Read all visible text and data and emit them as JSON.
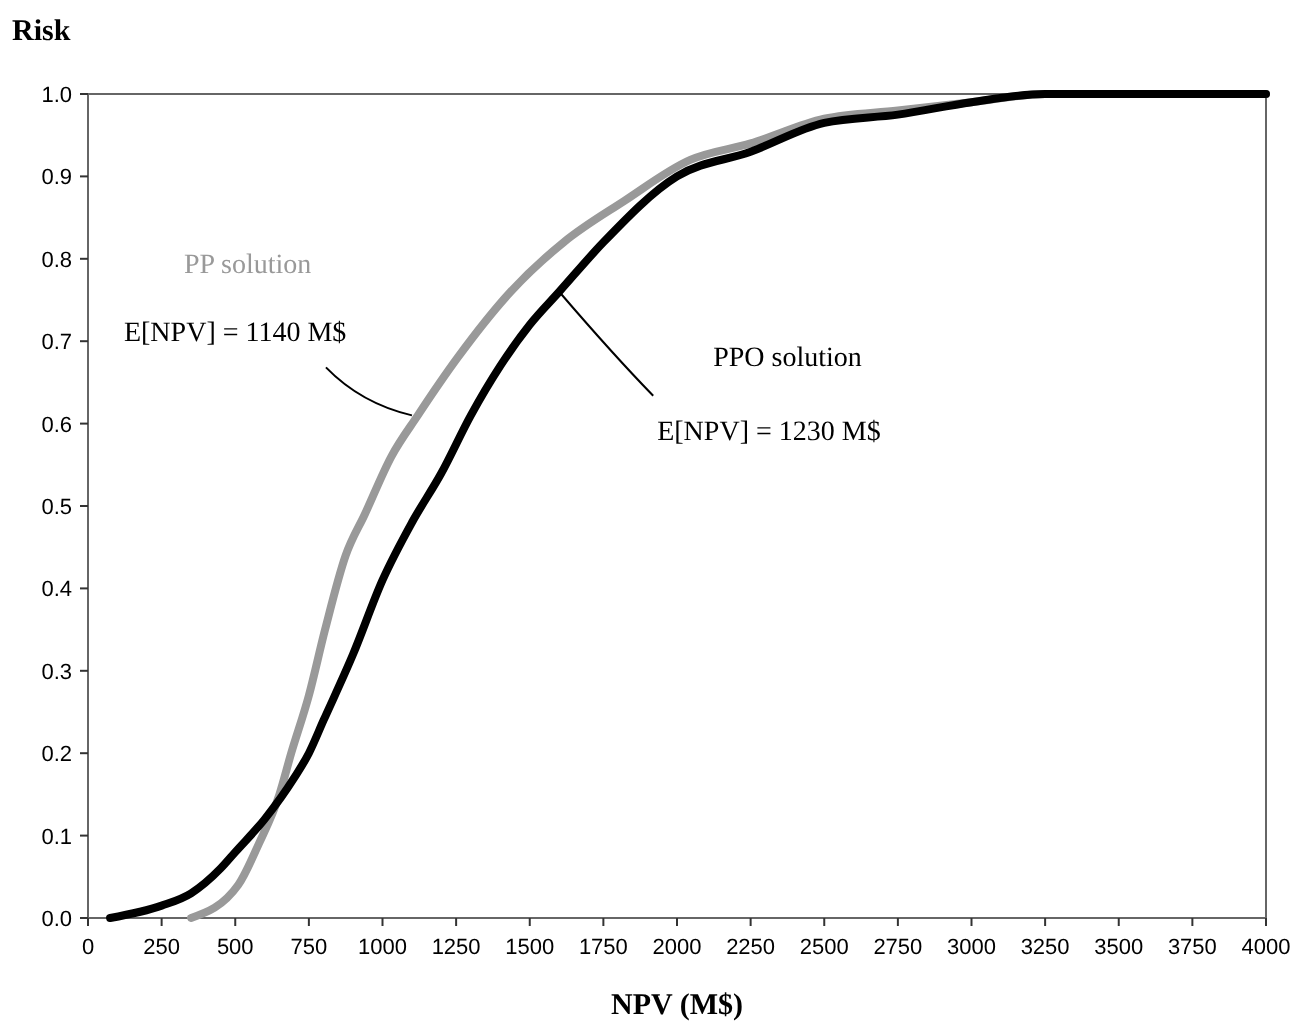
{
  "chart_data": {
    "type": "line",
    "xlabel": "NPV (M$)",
    "ylabel": "Risk",
    "xlim": [
      0,
      4000
    ],
    "xticks": [
      0,
      250,
      500,
      750,
      1000,
      1250,
      1500,
      1750,
      2000,
      2250,
      2500,
      2750,
      3000,
      3250,
      3500,
      3750,
      4000
    ],
    "ylim": [
      0,
      1
    ],
    "yticks": [
      {
        "value": 0,
        "label": "0.0"
      },
      {
        "value": 0.1,
        "label": "0.1"
      },
      {
        "value": 0.2,
        "label": "0.2"
      },
      {
        "value": 0.3,
        "label": "0.3"
      },
      {
        "value": 0.4,
        "label": "0.4"
      },
      {
        "value": 0.5,
        "label": "0.5"
      },
      {
        "value": 0.6,
        "label": "0.6"
      },
      {
        "value": 0.7,
        "label": "0.7"
      },
      {
        "value": 0.8,
        "label": "0.8"
      },
      {
        "value": 0.9,
        "label": "0.9"
      },
      {
        "value": 1,
        "label": "1.0"
      }
    ],
    "grid": false,
    "marker": "none",
    "line_style": "solid",
    "series": [
      {
        "name": "PP solution",
        "color": "#999999",
        "x": [
          350,
          510,
          580,
          650,
          690,
          750,
          805,
          875,
          940,
          1030,
          1120,
          1255,
          1435,
          1615,
          1820,
          2045,
          2250,
          2500,
          2750,
          3000,
          3250,
          4000
        ],
        "values": [
          0,
          0.04,
          0.09,
          0.15,
          0.2,
          0.27,
          0.35,
          0.44,
          0.49,
          0.56,
          0.61,
          0.68,
          0.76,
          0.82,
          0.87,
          0.92,
          0.94,
          0.97,
          0.98,
          0.99,
          1,
          1
        ]
      },
      {
        "name": "PPO solution",
        "color": "#000000",
        "x": [
          75,
          250,
          350,
          450,
          500,
          600,
          700,
          750,
          800,
          900,
          1000,
          1100,
          1200,
          1300,
          1400,
          1500,
          1600,
          1750,
          2000,
          2250,
          2500,
          2750,
          3000,
          3250,
          4000
        ],
        "values": [
          0,
          0.015,
          0.03,
          0.06,
          0.08,
          0.12,
          0.17,
          0.2,
          0.24,
          0.32,
          0.41,
          0.48,
          0.54,
          0.61,
          0.67,
          0.72,
          0.76,
          0.82,
          0.9,
          0.93,
          0.965,
          0.975,
          0.99,
          1,
          1
        ]
      }
    ],
    "annotations": [
      {
        "text": "E[NPV] = 1140 M$",
        "x": 1100,
        "y": 0.61
      },
      {
        "text": "E[NPV] = 1230 M$",
        "x": 1600,
        "y": 0.76
      }
    ]
  }
}
